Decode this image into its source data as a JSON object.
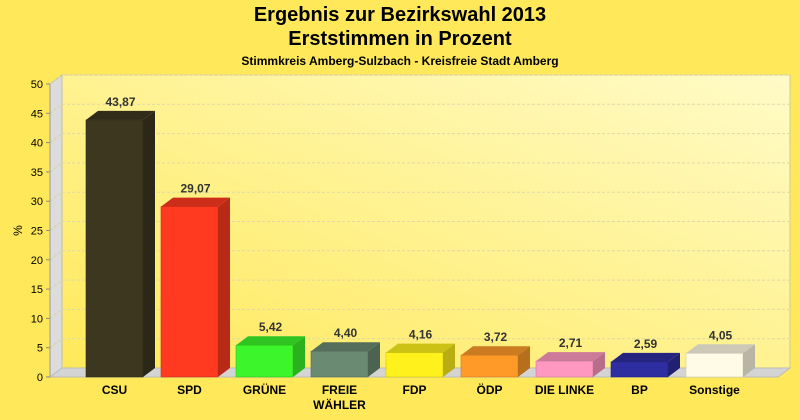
{
  "chart_data": {
    "type": "bar",
    "title": "Ergebnis zur Bezirkswahl 2013",
    "subtitle": "Erststimmen in Prozent",
    "subsubtitle": "Stimmkreis Amberg-Sulzbach - Kreisfreie Stadt Amberg",
    "xlabel": "",
    "ylabel": "%",
    "ylim": [
      0,
      50
    ],
    "yticks": [
      0,
      5,
      10,
      15,
      20,
      25,
      30,
      35,
      40,
      45,
      50
    ],
    "grid": true,
    "categories": [
      "CSU",
      "SPD",
      "GRÜNE",
      "FREIE WÄHLER",
      "FDP",
      "ÖDP",
      "DIE LINKE",
      "BP",
      "Sonstige"
    ],
    "values": [
      43.87,
      29.07,
      5.42,
      4.4,
      4.16,
      3.72,
      2.71,
      2.59,
      4.05
    ],
    "data_labels": [
      "43,87",
      "29,07",
      "5,42",
      "4,40",
      "4,16",
      "3,72",
      "2,71",
      "2,59",
      "4,05"
    ],
    "colors": [
      "#3d3720",
      "#ff3a20",
      "#3cf52a",
      "#6a8a72",
      "#fff21c",
      "#ff9a28",
      "#ff98c0",
      "#2e2ea0",
      "#fffbe6"
    ]
  }
}
